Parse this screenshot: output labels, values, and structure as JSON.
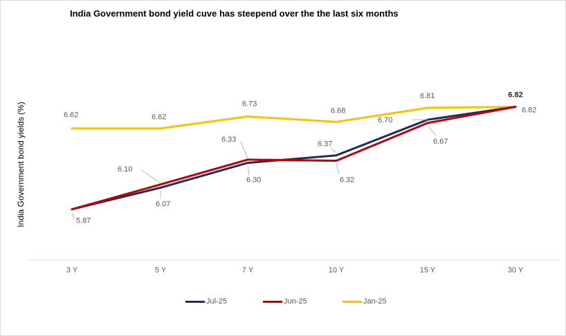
{
  "chart_data": {
    "type": "line",
    "title": "India Government bond yield cuve has steepend over the the last six months",
    "xlabel": "",
    "ylabel": "India Government bond yields (%)",
    "categories": [
      "3 Y",
      "5 Y",
      "7 Y",
      "10 Y",
      "15 Y",
      "30 Y"
    ],
    "ylim": [
      5.4,
      6.95
    ],
    "grid": false,
    "legend_position": "bottom",
    "series": [
      {
        "name": "Jul-25",
        "color": "#1F2D5E",
        "values": [
          5.87,
          6.07,
          6.3,
          6.37,
          6.7,
          6.82
        ],
        "labels": [
          "5.87",
          "6.07",
          "6.30",
          "6.37",
          "6.70",
          "6.82"
        ]
      },
      {
        "name": "Jun-25",
        "color": "#C00000",
        "values": [
          5.87,
          6.1,
          6.33,
          6.32,
          6.67,
          6.82
        ],
        "labels": [
          "",
          "6.10",
          "6.33",
          "6.32",
          "6.67",
          "6.82"
        ]
      },
      {
        "name": "Jan-25",
        "color": "#FFC000",
        "values": [
          6.62,
          6.62,
          6.73,
          6.68,
          6.81,
          6.82
        ],
        "labels": [
          "6.62",
          "6.62",
          "6.73",
          "6.68",
          "6.81",
          "6.82"
        ]
      }
    ]
  }
}
